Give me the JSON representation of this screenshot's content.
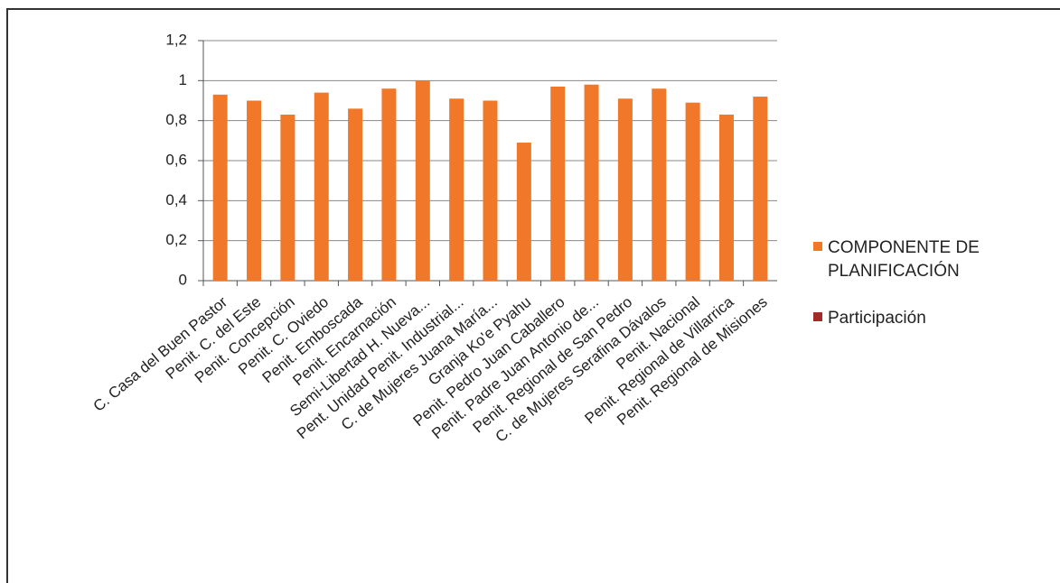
{
  "chart_data": {
    "type": "bar",
    "categories": [
      "C.  Casa del Buen Pastor",
      "Penit. C. del Este",
      "Penit. Concepción",
      "Penit. C. Oviedo",
      "Penit. Emboscada",
      "Penit. Encarnación",
      "Semi-Libertad H. Nueva...",
      "Pent. Unidad Penit. Industrial...",
      "C. de Mujeres Juana María...",
      "Granja Ko'e Pyahu",
      "Penit. Pedro Juan Caballero",
      "Penit. Padre Juan Antonio de...",
      "Penit. Regional de San Pedro",
      "C. de Mujeres Serafina Dávalos",
      "Penit. Nacional",
      "Penit. Regional de Villarrica",
      "Penit. Regional de Misiones"
    ],
    "series": [
      {
        "name": "COMPONENTE DE PLANIFICACIÓN",
        "color": "#f07828",
        "values": [
          0.93,
          0.9,
          0.83,
          0.94,
          0.86,
          0.96,
          1.0,
          0.91,
          0.9,
          0.69,
          0.97,
          0.98,
          0.91,
          0.96,
          0.89,
          0.83,
          0.92
        ]
      },
      {
        "name": "Participación",
        "color": "#a42a2a",
        "values": [
          null,
          null,
          null,
          null,
          null,
          null,
          null,
          null,
          null,
          null,
          null,
          null,
          null,
          null,
          null,
          null,
          null
        ]
      }
    ],
    "ylim": [
      0,
      1.2
    ],
    "yticks": [
      0,
      {
        "value": 0.2,
        "label": "0,2"
      },
      {
        "value": 0.4,
        "label": "0,4"
      },
      {
        "value": 0.6,
        "label": "0,6"
      },
      {
        "value": 0.8,
        "label": "0,8"
      },
      1,
      {
        "value": 1.2,
        "label": "1,2"
      }
    ],
    "grid": true
  }
}
